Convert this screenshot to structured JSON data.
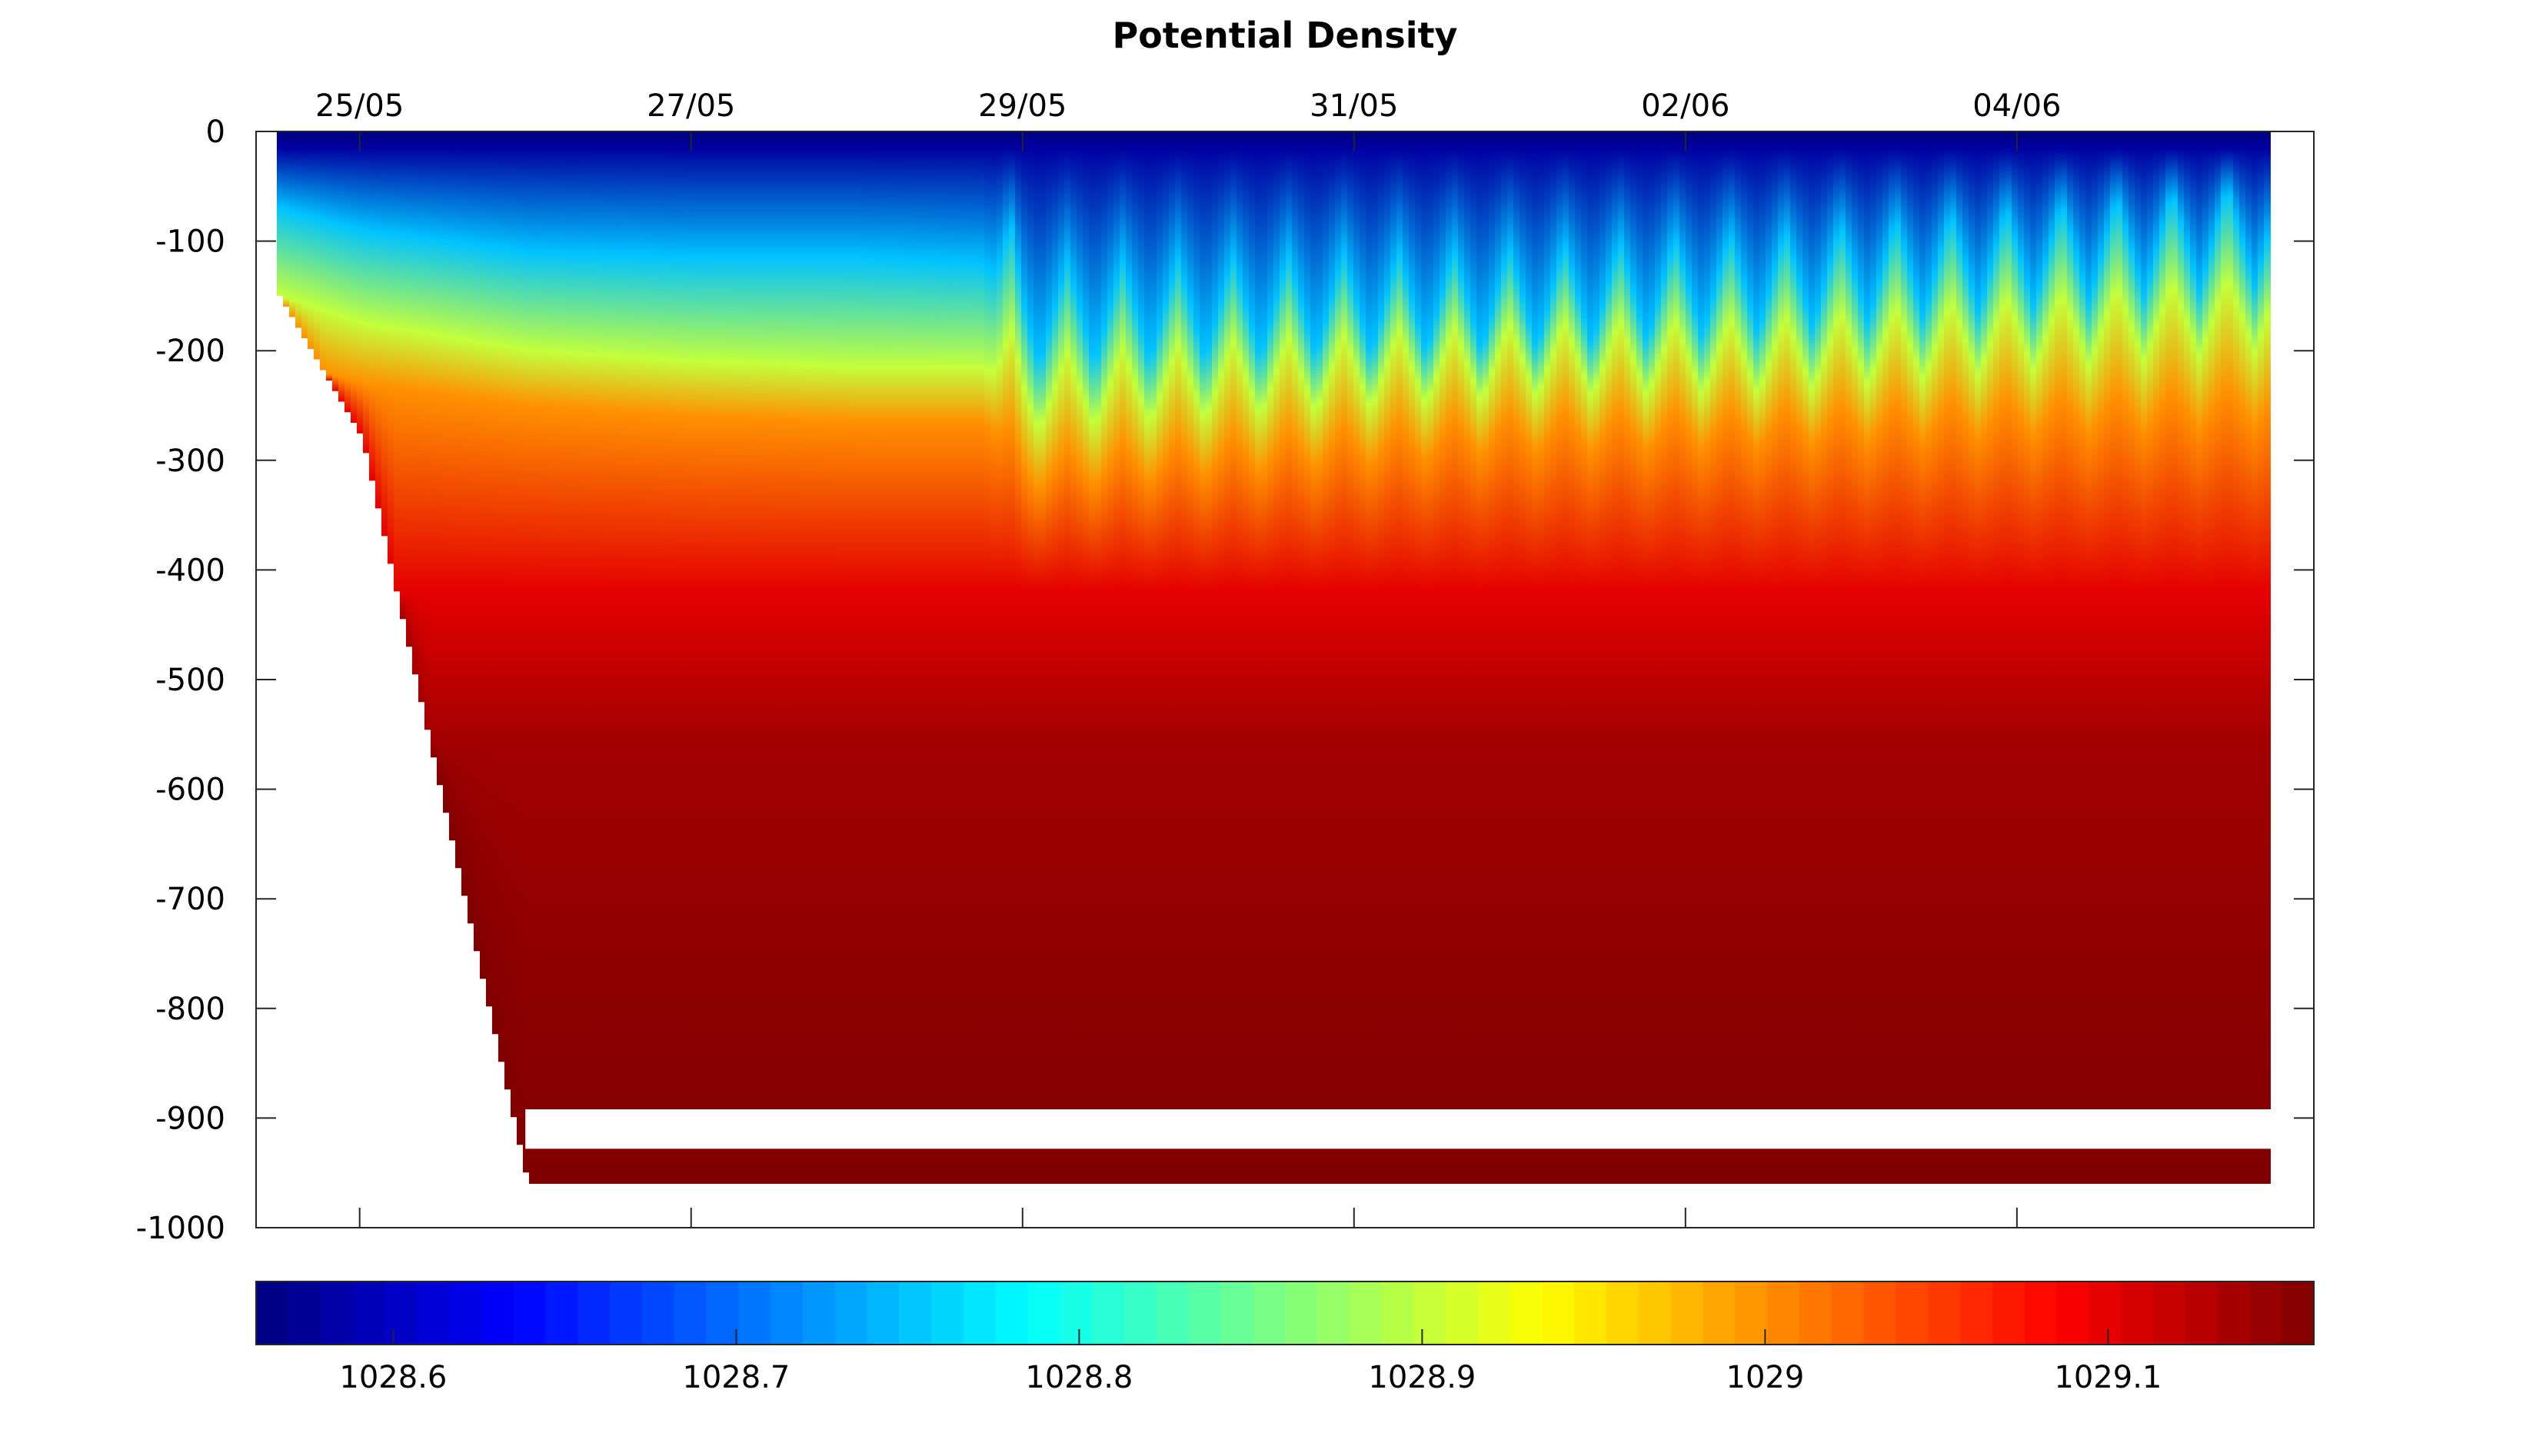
{
  "chart_data": {
    "type": "heatmap",
    "title": "Potential Density",
    "xlabel": "",
    "ylabel": "",
    "x_axis": {
      "position": "top",
      "range": [
        "2019-05-24T09:00",
        "2019-06-05T19:00"
      ],
      "ticks": [
        "25/05",
        "27/05",
        "29/05",
        "31/05",
        "02/06",
        "04/06"
      ]
    },
    "y_axis": {
      "range": [
        -1000,
        0
      ],
      "ticks": [
        "0",
        "-100",
        "-200",
        "-300",
        "-400",
        "-500",
        "-600",
        "-700",
        "-800",
        "-900",
        "-1000"
      ]
    },
    "colorbar": {
      "placement": "bottom",
      "colormap": "jet",
      "range": [
        1028.56,
        1029.16
      ],
      "ticks": [
        "1028.6",
        "1028.7",
        "1028.8",
        "1028.9",
        "1029",
        "1029.1"
      ],
      "colors": [
        "#00007f",
        "#0000ff",
        "#007fff",
        "#00ffff",
        "#7fff7f",
        "#ffff00",
        "#ff7f00",
        "#ff0000",
        "#7f0000"
      ]
    },
    "profile_interval_hours": 8,
    "isopycnal_depths": [
      {
        "date": "2019-05-24T12:00",
        "d1028_75": -70,
        "d1028_9": -150,
        "d1029_0": -210,
        "max_depth": -150
      },
      {
        "date": "2019-05-25T00:00",
        "d1028_75": -90,
        "d1028_9": -175,
        "d1029_0": -230,
        "max_depth": -280
      },
      {
        "date": "2019-05-26T00:00",
        "d1028_75": -110,
        "d1028_9": -200,
        "d1029_0": -250,
        "max_depth": -960
      },
      {
        "date": "2019-05-27T00:00",
        "d1028_75": -115,
        "d1028_9": -210,
        "d1029_0": -260,
        "max_depth": -960
      },
      {
        "date": "2019-05-28T00:00",
        "d1028_75": -115,
        "d1028_9": -215,
        "d1029_0": -265,
        "max_depth": -960
      },
      {
        "date": "2019-05-28T18:00",
        "d1028_75": -120,
        "d1028_9": -215,
        "d1029_0": -265,
        "max_depth": -960
      },
      {
        "date": "2019-05-29T00:00",
        "d1028_75": -215,
        "d1028_9": -275,
        "d1029_0": -330,
        "max_depth": -960
      },
      {
        "date": "2019-06-01T00:00",
        "d1028_75": -200,
        "d1028_9": -245,
        "d1029_0": -295,
        "max_depth": -960
      },
      {
        "date": "2019-06-02T12:00",
        "d1028_75": -185,
        "d1028_9": -240,
        "d1029_0": -290,
        "max_depth": -960
      },
      {
        "date": "2019-06-05T12:00",
        "d1028_75": -140,
        "d1028_9": -200,
        "d1029_0": -270,
        "max_depth": -960
      }
    ]
  }
}
